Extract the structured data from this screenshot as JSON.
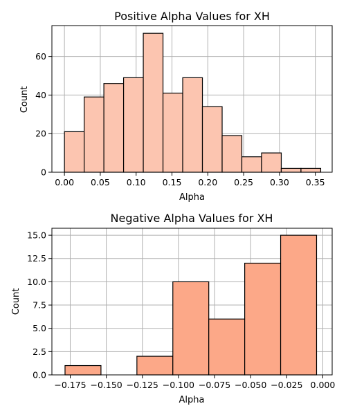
{
  "chart_data": [
    {
      "type": "bar",
      "title": "Positive Alpha Values for XH",
      "xlabel": "Alpha",
      "ylabel": "Count",
      "color": "#fcc5b0",
      "xlim": [
        -0.0175,
        0.3735
      ],
      "ylim": [
        0,
        76
      ],
      "xticks": [
        0.0,
        0.05,
        0.1,
        0.15,
        0.2,
        0.25,
        0.3,
        0.35
      ],
      "xtick_labels": [
        "0.00",
        "0.05",
        "0.10",
        "0.15",
        "0.20",
        "0.25",
        "0.30",
        "0.35"
      ],
      "yticks": [
        0,
        20,
        40,
        60
      ],
      "ytick_labels": [
        "0",
        "20",
        "40",
        "60"
      ],
      "grid": true,
      "bins": [
        {
          "x0": 0.0,
          "x1": 0.0275,
          "count": 21
        },
        {
          "x0": 0.0275,
          "x1": 0.055,
          "count": 39
        },
        {
          "x0": 0.055,
          "x1": 0.0825,
          "count": 46
        },
        {
          "x0": 0.0825,
          "x1": 0.11,
          "count": 49
        },
        {
          "x0": 0.11,
          "x1": 0.1375,
          "count": 72
        },
        {
          "x0": 0.1375,
          "x1": 0.165,
          "count": 41
        },
        {
          "x0": 0.165,
          "x1": 0.1925,
          "count": 49
        },
        {
          "x0": 0.1925,
          "x1": 0.22,
          "count": 34
        },
        {
          "x0": 0.22,
          "x1": 0.2475,
          "count": 19
        },
        {
          "x0": 0.2475,
          "x1": 0.275,
          "count": 8
        },
        {
          "x0": 0.275,
          "x1": 0.3025,
          "count": 10
        },
        {
          "x0": 0.3025,
          "x1": 0.33,
          "count": 2
        },
        {
          "x0": 0.33,
          "x1": 0.3575,
          "count": 2
        }
      ]
    },
    {
      "type": "bar",
      "title": "Negative Alpha Values for XH",
      "xlabel": "Alpha",
      "ylabel": "Count",
      "color": "#fca888",
      "xlim": [
        -0.1877,
        0.0065
      ],
      "ylim": [
        0,
        15.75
      ],
      "xticks": [
        -0.175,
        -0.15,
        -0.125,
        -0.1,
        -0.075,
        -0.05,
        -0.025,
        0.0
      ],
      "xtick_labels": [
        "−0.175",
        "−0.150",
        "−0.125",
        "−0.100",
        "−0.075",
        "−0.050",
        "−0.025",
        "0.000"
      ],
      "yticks": [
        0,
        2.5,
        5,
        7.5,
        10,
        12.5,
        15
      ],
      "ytick_labels": [
        "0.0",
        "2.5",
        "5.0",
        "7.5",
        "10.0",
        "12.5",
        "15.0"
      ],
      "grid": true,
      "bins": [
        {
          "x0": -0.1786,
          "x1": -0.1537,
          "count": 1
        },
        {
          "x0": -0.1537,
          "x1": -0.1288,
          "count": 0
        },
        {
          "x0": -0.1288,
          "x1": -0.1039,
          "count": 2
        },
        {
          "x0": -0.1039,
          "x1": -0.079,
          "count": 10
        },
        {
          "x0": -0.079,
          "x1": -0.0541,
          "count": 6
        },
        {
          "x0": -0.0541,
          "x1": -0.0292,
          "count": 12
        },
        {
          "x0": -0.0292,
          "x1": -0.0043,
          "count": 15
        }
      ]
    }
  ]
}
